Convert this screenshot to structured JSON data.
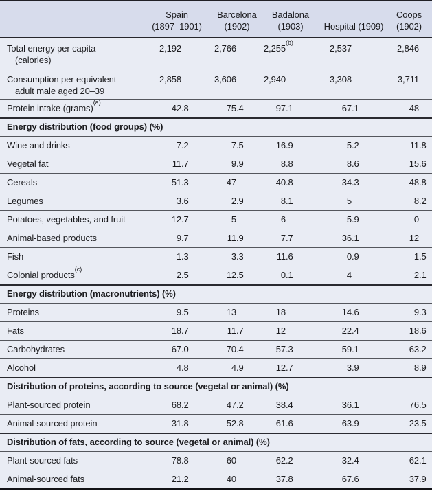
{
  "colors": {
    "header_band_bg": "#d7dcec",
    "row_bg": "#e9ecf4",
    "rule_thin": "#54565c",
    "rule_thick": "#202026",
    "text": "#1b1b1e"
  },
  "table": {
    "columns": [
      {
        "line1": "Spain",
        "line2": "(1897–1901)"
      },
      {
        "line1": "Barcelona",
        "line2": "(1902)"
      },
      {
        "line1": "Badalona",
        "line2": "(1903)"
      },
      {
        "line1": "",
        "line2": "Hospital (1909)"
      },
      {
        "line1": "Coops",
        "line2": "(1902)"
      }
    ],
    "sections": [
      {
        "header": "",
        "rows": [
          {
            "label": "Total energy per capita",
            "label2": "(calories)",
            "values": [
              "2,192",
              "2,766",
              "2,255^(b)",
              "2,537",
              "2,846"
            ]
          },
          {
            "label": "Consumption per equivalent",
            "label2": "adult male aged 20–39",
            "values": [
              "2,858",
              "3,606",
              "2,940",
              "3,308",
              "3,711"
            ]
          },
          {
            "label": "Protein intake (grams)^(a)",
            "values": [
              "42.8",
              "75.4",
              "97.1",
              "67.1",
              "48"
            ]
          }
        ]
      },
      {
        "header": "Energy distribution (food groups) (%)",
        "rows": [
          {
            "label": "Wine and drinks",
            "values": [
              "7.2",
              "7.5",
              "16.9",
              "5.2",
              "11.8"
            ]
          },
          {
            "label": "Vegetal fat",
            "values": [
              "11.7",
              "9.9",
              "8.8",
              "8.6",
              "15.6"
            ]
          },
          {
            "label": "Cereals",
            "values": [
              "51.3",
              "47",
              "40.8",
              "34.3",
              "48.8"
            ]
          },
          {
            "label": "Legumes",
            "values": [
              "3.6",
              "2.9",
              "8.1",
              "5",
              "8.2"
            ]
          },
          {
            "label": "Potatoes, vegetables, and fruit",
            "values": [
              "12.7",
              "5",
              "6",
              "5.9",
              "0"
            ]
          },
          {
            "label": "Animal-based products",
            "values": [
              "9.7",
              "11.9",
              "7.7",
              "36.1",
              "12"
            ]
          },
          {
            "label": "Fish",
            "values": [
              "1.3",
              "3.3",
              "11.6",
              "0.9",
              "1.5"
            ]
          },
          {
            "label": "Colonial products^(c)",
            "values": [
              "2.5",
              "12.5",
              "0.1",
              "4",
              "2.1"
            ]
          }
        ]
      },
      {
        "header": "Energy distribution (macronutrients) (%)",
        "rows": [
          {
            "label": "Proteins",
            "values": [
              "9.5",
              "13",
              "18",
              "14.6",
              "9.3"
            ]
          },
          {
            "label": "Fats",
            "values": [
              "18.7",
              "11.7",
              "12",
              "22.4",
              "18.6"
            ]
          },
          {
            "label": "Carbohydrates",
            "values": [
              "67.0",
              "70.4",
              "57.3",
              "59.1",
              "63.2"
            ]
          },
          {
            "label": "Alcohol",
            "values": [
              "4.8",
              "4.9",
              "12.7",
              "3.9",
              "8.9"
            ]
          }
        ]
      },
      {
        "header": "Distribution of proteins, according to source (vegetal or animal) (%)",
        "rows": [
          {
            "label": "Plant-sourced protein",
            "values": [
              "68.2",
              "47.2",
              "38.4",
              "36.1",
              "76.5"
            ]
          },
          {
            "label": "Animal-sourced protein",
            "values": [
              "31.8",
              "52.8",
              "61.6",
              "63.9",
              "23.5"
            ]
          }
        ]
      },
      {
        "header": "Distribution of fats, according to source (vegetal or animal) (%)",
        "rows": [
          {
            "label": "Plant-sourced fats",
            "values": [
              "78.8",
              "60",
              "62.2",
              "32.4",
              "62.1"
            ]
          },
          {
            "label": "Animal-sourced fats",
            "values": [
              "21.2",
              "40",
              "37.8",
              "67.6",
              "37.9"
            ]
          }
        ]
      }
    ]
  }
}
